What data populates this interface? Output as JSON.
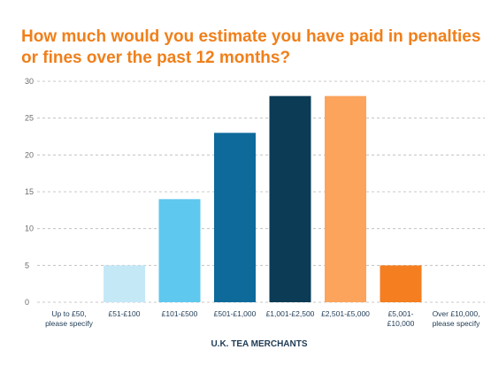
{
  "chart_data": {
    "type": "bar",
    "title": "How much would you estimate you have paid in penalties or fines over the past 12 months?",
    "xlabel": "U.K. TEA MERCHANTS",
    "ylabel": "",
    "ylim": [
      0,
      30
    ],
    "yticks": [
      0,
      5,
      10,
      15,
      20,
      25,
      30
    ],
    "grid": true,
    "categories": [
      [
        "Up to £50,",
        "please specify"
      ],
      [
        "£51-£100"
      ],
      [
        "£101-£500"
      ],
      [
        "£501-£1,000"
      ],
      [
        "£1,001-£2,500"
      ],
      [
        "£2,501-£5,000"
      ],
      [
        "£5,001-",
        "£10,000"
      ],
      [
        "Over £10,000,",
        "please specify"
      ]
    ],
    "values": [
      0,
      5,
      14,
      23,
      28,
      28,
      5,
      0
    ],
    "colors": [
      "#c5e8f7",
      "#c5e8f7",
      "#5fc8ee",
      "#0d6a9b",
      "#0b3b55",
      "#fca45c",
      "#f47e20",
      "#c5e8f7"
    ]
  }
}
